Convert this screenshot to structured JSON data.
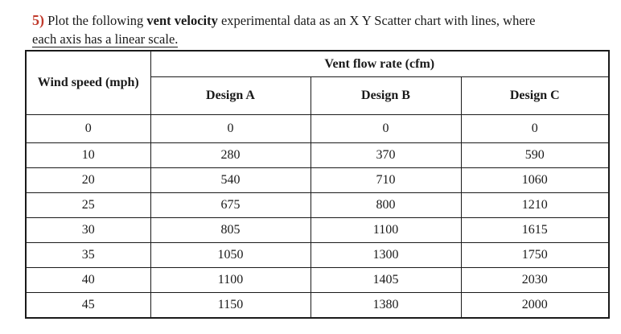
{
  "question": {
    "number": "5)",
    "text_before": " Plot the following ",
    "bold_term": "vent velocity",
    "text_after": " experimental data as an X Y Scatter chart with lines, where",
    "line2": "each axis has a linear scale."
  },
  "table": {
    "super_header": "Vent flow rate (cfm)",
    "first_header": "Wind speed (mph)",
    "headers": [
      "Design A",
      "Design B",
      "Design C"
    ],
    "rows": [
      [
        "0",
        "0",
        "0",
        "0"
      ],
      [
        "10",
        "280",
        "370",
        "590"
      ],
      [
        "20",
        "540",
        "710",
        "1060"
      ],
      [
        "25",
        "675",
        "800",
        "1210"
      ],
      [
        "30",
        "805",
        "1100",
        "1615"
      ],
      [
        "35",
        "1050",
        "1300",
        "1750"
      ],
      [
        "40",
        "1100",
        "1405",
        "2030"
      ],
      [
        "45",
        "1150",
        "1380",
        "2000"
      ]
    ]
  },
  "colors": {
    "question_number": "#c0392b",
    "text": "#1a1a1a",
    "background": "#ffffff"
  }
}
